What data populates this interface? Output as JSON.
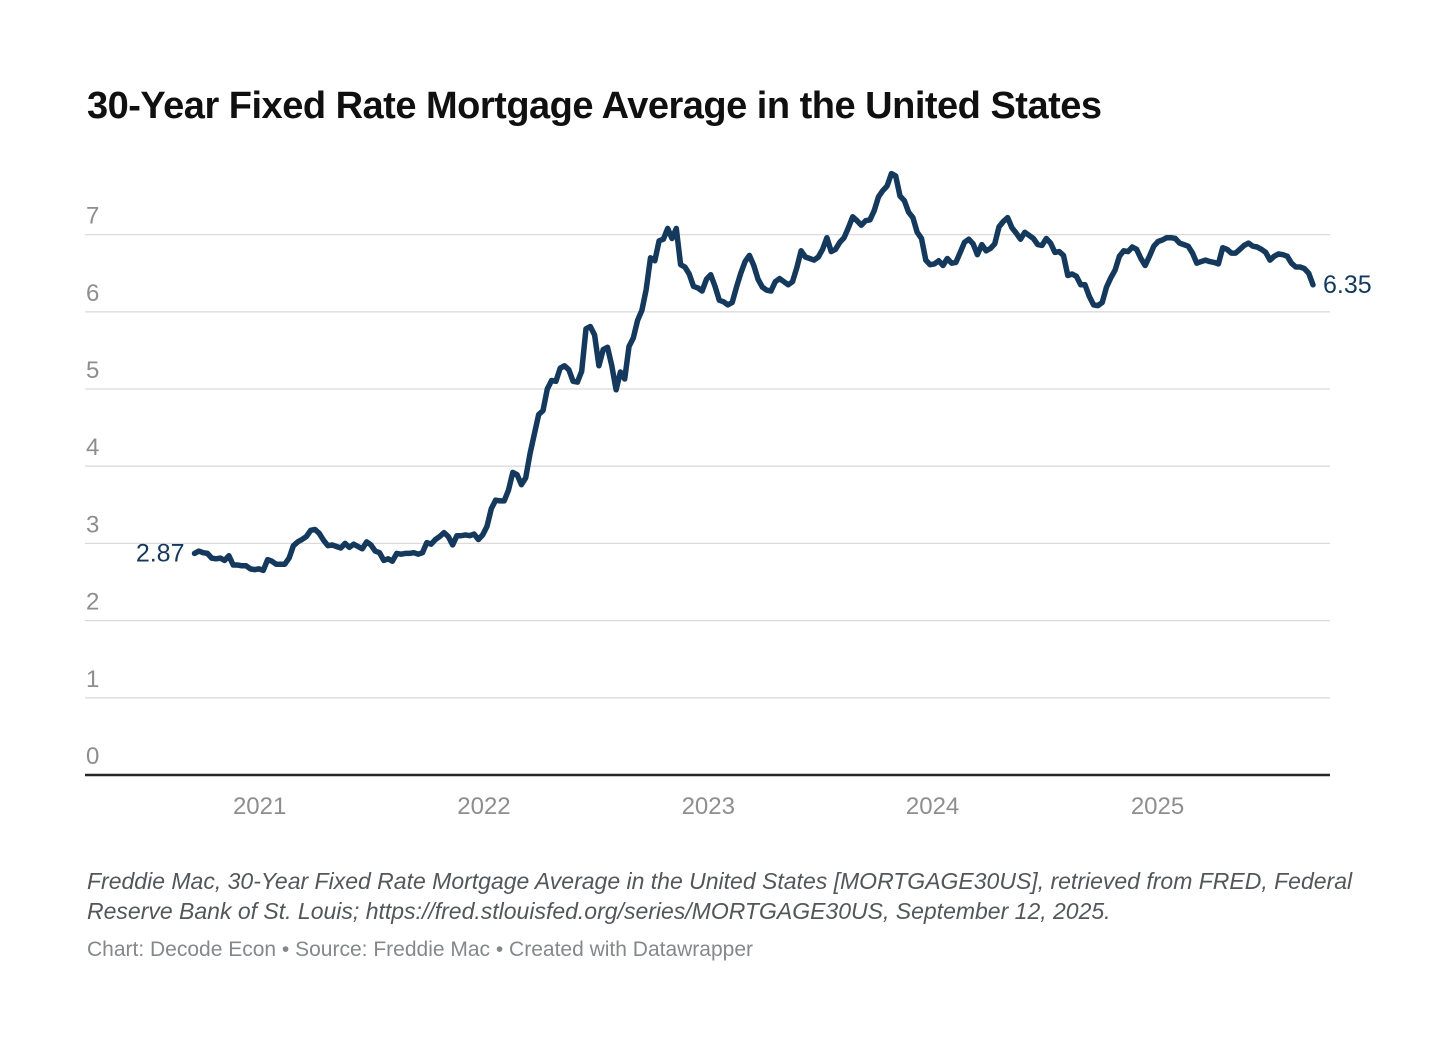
{
  "title": "30-Year Fixed Rate Mortgage Average in the United States",
  "notes_text": "Freddie Mac, 30-Year Fixed Rate Mortgage Average in the United States [MORTGAGE30US], retrieved from FRED, Federal Reserve Bank of St. Louis; https://fred.stlouisfed.org/series/MORTGAGE30US, September 12, 2025.",
  "byline_text": "Chart: Decode Econ • Source: Freddie Mac • Created with Datawrapper",
  "colors": {
    "line": "#14395c",
    "value_label": "#14395c",
    "gridline": "#dbdbdb",
    "axis_line": "#262626",
    "tick_label": "#8e8e8e",
    "title": "#101010",
    "notes": "#53565a",
    "byline": "#85888b",
    "background": "#ffffff"
  },
  "chart_data": {
    "type": "line",
    "title": "30-Year Fixed Rate Mortgage Average in the United States",
    "series_name": "MORTGAGE30US",
    "unit": "percent",
    "frequency": "weekly",
    "start_date": "2020-09-17",
    "end_date": "2025-09-11",
    "xlabel": "",
    "ylabel": "",
    "ylim": [
      0,
      7.9
    ],
    "yticks": [
      0,
      1,
      2,
      3,
      4,
      5,
      6,
      7
    ],
    "xticks": [
      2021,
      2022,
      2023,
      2024,
      2025
    ],
    "grid": "horizontal",
    "legend": "none",
    "first_value_label": "2.87",
    "last_value_label": "6.35",
    "values": [
      2.87,
      2.9,
      2.88,
      2.87,
      2.81,
      2.8,
      2.81,
      2.78,
      2.84,
      2.72,
      2.72,
      2.71,
      2.71,
      2.67,
      2.66,
      2.67,
      2.65,
      2.79,
      2.77,
      2.73,
      2.73,
      2.73,
      2.81,
      2.97,
      3.02,
      3.05,
      3.09,
      3.17,
      3.18,
      3.13,
      3.04,
      2.97,
      2.98,
      2.96,
      2.94,
      3.0,
      2.95,
      2.99,
      2.96,
      2.93,
      3.02,
      2.98,
      2.9,
      2.88,
      2.78,
      2.8,
      2.77,
      2.87,
      2.86,
      2.87,
      2.87,
      2.88,
      2.86,
      2.88,
      3.01,
      2.99,
      3.05,
      3.09,
      3.14,
      3.09,
      2.98,
      3.1,
      3.1,
      3.11,
      3.1,
      3.12,
      3.05,
      3.11,
      3.22,
      3.45,
      3.56,
      3.55,
      3.55,
      3.69,
      3.92,
      3.89,
      3.76,
      3.85,
      4.16,
      4.42,
      4.67,
      4.72,
      5.0,
      5.11,
      5.1,
      5.27,
      5.3,
      5.25,
      5.1,
      5.09,
      5.23,
      5.78,
      5.81,
      5.7,
      5.3,
      5.51,
      5.54,
      5.3,
      4.99,
      5.22,
      5.13,
      5.55,
      5.66,
      5.89,
      6.02,
      6.29,
      6.7,
      6.66,
      6.92,
      6.94,
      7.08,
      6.95,
      7.08,
      6.61,
      6.58,
      6.49,
      6.33,
      6.31,
      6.27,
      6.42,
      6.48,
      6.33,
      6.15,
      6.13,
      6.09,
      6.12,
      6.32,
      6.5,
      6.65,
      6.73,
      6.6,
      6.42,
      6.32,
      6.28,
      6.27,
      6.39,
      6.43,
      6.39,
      6.35,
      6.39,
      6.57,
      6.79,
      6.71,
      6.69,
      6.67,
      6.71,
      6.81,
      6.96,
      6.78,
      6.81,
      6.9,
      6.96,
      7.09,
      7.23,
      7.18,
      7.12,
      7.18,
      7.19,
      7.31,
      7.49,
      7.57,
      7.63,
      7.79,
      7.76,
      7.5,
      7.44,
      7.29,
      7.22,
      7.03,
      6.95,
      6.67,
      6.61,
      6.62,
      6.66,
      6.6,
      6.69,
      6.63,
      6.64,
      6.77,
      6.9,
      6.94,
      6.88,
      6.74,
      6.87,
      6.79,
      6.82,
      6.88,
      7.1,
      7.17,
      7.22,
      7.09,
      7.02,
      6.94,
      7.03,
      6.99,
      6.95,
      6.87,
      6.86,
      6.95,
      6.89,
      6.77,
      6.78,
      6.73,
      6.47,
      6.49,
      6.46,
      6.35,
      6.35,
      6.2,
      6.09,
      6.08,
      6.12,
      6.32,
      6.44,
      6.54,
      6.72,
      6.79,
      6.78,
      6.84,
      6.81,
      6.69,
      6.6,
      6.72,
      6.85,
      6.91,
      6.93,
      6.96,
      6.96,
      6.95,
      6.89,
      6.87,
      6.85,
      6.76,
      6.63,
      6.65,
      6.67,
      6.65,
      6.64,
      6.62,
      6.83,
      6.81,
      6.76,
      6.76,
      6.81,
      6.86,
      6.89,
      6.85,
      6.84,
      6.81,
      6.77,
      6.67,
      6.72,
      6.75,
      6.74,
      6.72,
      6.63,
      6.58,
      6.58,
      6.56,
      6.5,
      6.35
    ]
  }
}
